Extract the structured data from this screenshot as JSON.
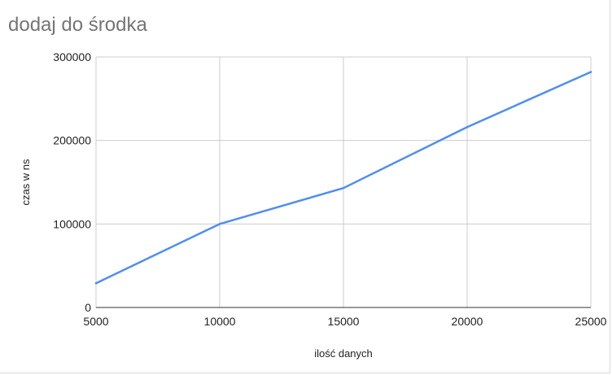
{
  "chart_data": {
    "type": "line",
    "title": "dodaj do środka",
    "xlabel": "ilość danych",
    "ylabel": "czas w ns",
    "x": [
      5000,
      10000,
      15000,
      20000,
      25000
    ],
    "series": [
      {
        "values": [
          29000,
          100000,
          143000,
          216000,
          282000
        ]
      }
    ],
    "xlim": [
      5000,
      25000
    ],
    "ylim": [
      0,
      300000
    ],
    "x_ticks": [
      "5000",
      "10000",
      "15000",
      "20000",
      "25000"
    ],
    "y_ticks": [
      "0",
      "100000",
      "200000",
      "300000"
    ],
    "grid": true,
    "legend": "none",
    "colors": {
      "line": "#4f8ef0",
      "grid": "#cccccc",
      "axis": "#333333"
    }
  }
}
